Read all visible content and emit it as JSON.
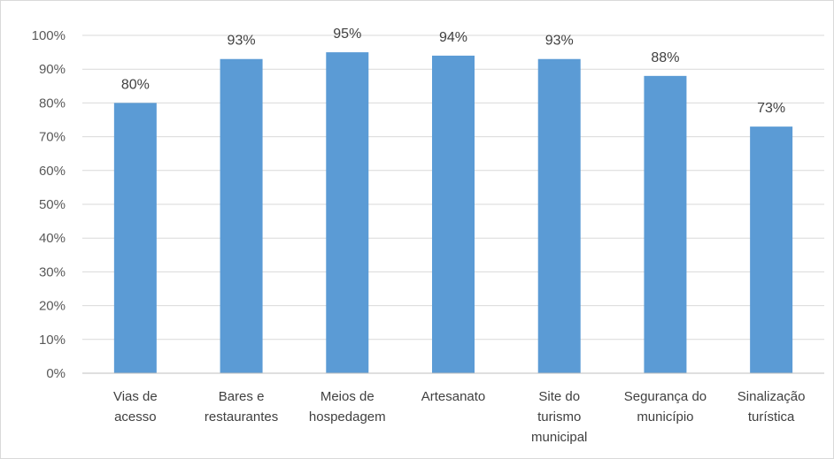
{
  "chart_data": {
    "type": "bar",
    "categories": [
      [
        "Vias de",
        "acesso"
      ],
      [
        "Bares e",
        "restaurantes"
      ],
      [
        "Meios de",
        "hospedagem"
      ],
      [
        "Artesanato"
      ],
      [
        "Site do",
        "turismo",
        "municipal"
      ],
      [
        "Segurança do",
        "município"
      ],
      [
        "Sinalização",
        "turística"
      ]
    ],
    "values": [
      80,
      93,
      95,
      94,
      93,
      88,
      73
    ],
    "data_labels": [
      "80%",
      "93%",
      "95%",
      "94%",
      "93%",
      "88%",
      "73%"
    ],
    "y_ticks": [
      "0%",
      "10%",
      "20%",
      "30%",
      "40%",
      "50%",
      "60%",
      "70%",
      "80%",
      "90%",
      "100%"
    ],
    "ylim": [
      0,
      100
    ],
    "grid": true,
    "legend": "none",
    "colors": {
      "bar": "#5b9bd5",
      "grid": "#d9d9d9",
      "axis": "#bfbfbf"
    }
  }
}
